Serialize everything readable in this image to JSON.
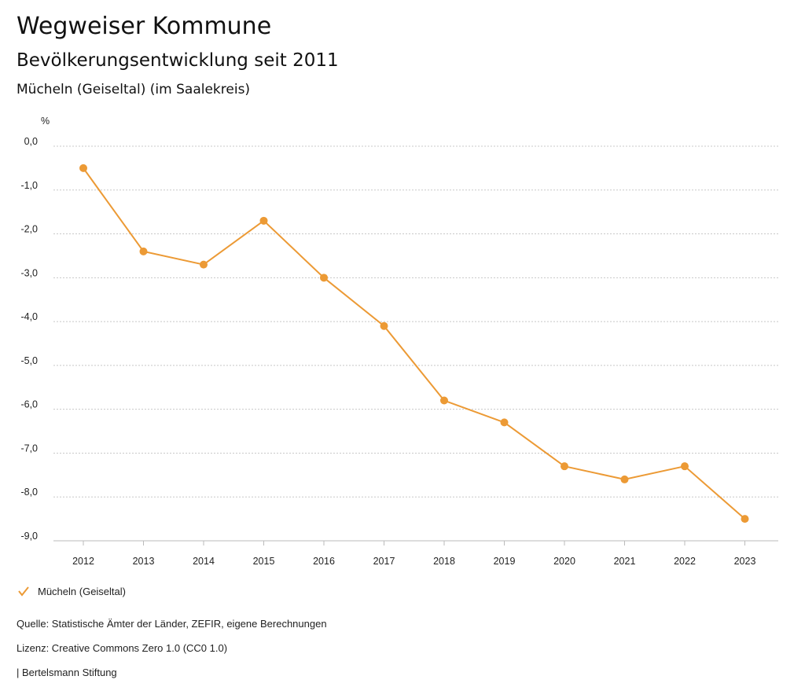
{
  "header": {
    "title": "Wegweiser Kommune",
    "subtitle": "Bevölkerungsentwicklung seit 2011",
    "region": "Mücheln (Geiseltal) (im Saalekreis)"
  },
  "chart_data": {
    "type": "line",
    "title": "Bevölkerungsentwicklung seit 2011",
    "xlabel": "",
    "ylabel": "%",
    "x": [
      "2012",
      "2013",
      "2014",
      "2015",
      "2016",
      "2017",
      "2018",
      "2019",
      "2020",
      "2021",
      "2022",
      "2023"
    ],
    "series": [
      {
        "name": "Mücheln (Geiseltal)",
        "values": [
          -0.5,
          -2.4,
          -2.7,
          -1.7,
          -3.0,
          -4.1,
          -5.8,
          -6.3,
          -7.3,
          -7.6,
          -7.3,
          -8.5
        ]
      }
    ],
    "ylim": [
      -9.0,
      0.0
    ],
    "yticks": [
      0.0,
      -1.0,
      -2.0,
      -3.0,
      -4.0,
      -5.0,
      -6.0,
      -7.0,
      -8.0,
      -9.0
    ],
    "ytick_labels": [
      "0,0",
      "-1,0",
      "-2,0",
      "-3,0",
      "-4,0",
      "-5,0",
      "-6,0",
      "-7,0",
      "-8,0",
      "-9,0"
    ],
    "grid": true,
    "legend_position": "bottom-left",
    "color": "#ec9a35"
  },
  "footer": {
    "source": "Quelle: Statistische Ämter der Länder, ZEFIR, eigene Berechnungen",
    "license": "Lizenz: Creative Commons Zero 1.0 (CC0 1.0)",
    "publisher": "| Bertelsmann Stiftung"
  }
}
